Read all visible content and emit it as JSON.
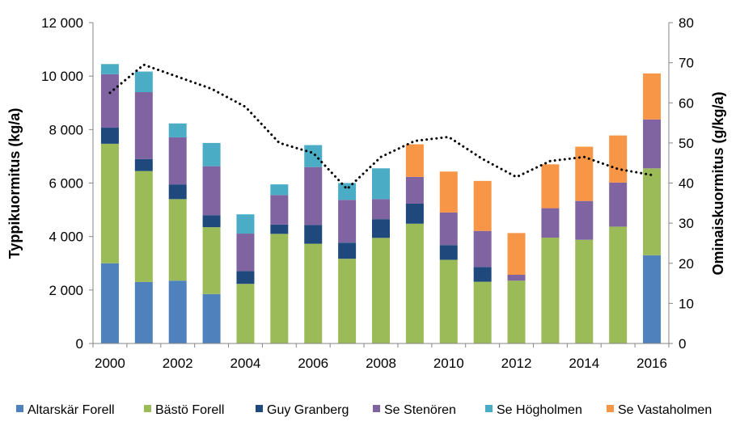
{
  "chart_data": {
    "type": "bar",
    "stacked": true,
    "categories": [
      "2000",
      "2001",
      "2002",
      "2003",
      "2004",
      "2005",
      "2006",
      "2007",
      "2008",
      "2009",
      "2010",
      "2011",
      "2012",
      "2013",
      "2014",
      "2015",
      "2016"
    ],
    "x_tick_labels": [
      "2000",
      "",
      "2002",
      "",
      "2004",
      "",
      "2006",
      "",
      "2008",
      "",
      "2010",
      "",
      "2012",
      "",
      "2014",
      "",
      "2016"
    ],
    "ylabel": "Typpikuormitus (kg/a)",
    "ylim": [
      0,
      12000
    ],
    "yticks": [
      0,
      2000,
      4000,
      6000,
      8000,
      10000,
      12000
    ],
    "ytick_labels": [
      "0",
      "2 000",
      "4 000",
      "6 000",
      "8 000",
      "10 000",
      "12 000"
    ],
    "y2label": "Ominaiskuormitus (g/kg/a)",
    "y2lim": [
      0,
      80
    ],
    "y2ticks": [
      0,
      10,
      20,
      30,
      40,
      50,
      60,
      70,
      80
    ],
    "y2tick_labels": [
      "0",
      "10",
      "20",
      "30",
      "40",
      "50",
      "60",
      "70",
      "80"
    ],
    "grid": false,
    "legend_position": "bottom",
    "series": [
      {
        "name": "Altarskär Forell",
        "color": "#4f81bd",
        "values": [
          3000,
          2300,
          2350,
          1850,
          0,
          0,
          0,
          0,
          0,
          0,
          0,
          0,
          0,
          0,
          0,
          0,
          3300
        ]
      },
      {
        "name": "Bästö Forell",
        "color": "#9bbb59",
        "values": [
          4470,
          4150,
          3050,
          2500,
          2230,
          4100,
          3730,
          3170,
          3950,
          4480,
          3130,
          2310,
          2350,
          3960,
          3880,
          4370,
          3250
        ]
      },
      {
        "name": "Guy Granberg",
        "color": "#1f497d",
        "values": [
          600,
          450,
          550,
          450,
          480,
          350,
          700,
          600,
          700,
          750,
          550,
          550,
          0,
          0,
          0,
          0,
          0
        ]
      },
      {
        "name": "Se Stenören",
        "color": "#8064a2",
        "values": [
          2000,
          2500,
          1760,
          1830,
          1400,
          1100,
          2170,
          1600,
          750,
          1000,
          1220,
          1350,
          220,
          1100,
          1450,
          1650,
          1830
        ]
      },
      {
        "name": "Se Högholmen",
        "color": "#4bacc6",
        "values": [
          380,
          770,
          520,
          870,
          720,
          400,
          820,
          630,
          1150,
          0,
          0,
          0,
          0,
          0,
          0,
          0,
          0
        ]
      },
      {
        "name": "Se Vastaholmen",
        "color": "#f79646",
        "values": [
          0,
          0,
          0,
          0,
          0,
          0,
          0,
          0,
          0,
          1220,
          1530,
          1870,
          1560,
          1640,
          2030,
          1760,
          1720
        ]
      }
    ],
    "line_series": {
      "name": "Ominaiskuormitus",
      "axis": "right",
      "color": "#000000",
      "style": "dotted",
      "values": [
        62.5,
        69.5,
        66.5,
        63.5,
        59,
        50,
        47.5,
        38.5,
        46.5,
        50.5,
        51.5,
        46,
        41.5,
        45.5,
        46.5,
        43.5,
        42
      ]
    }
  }
}
